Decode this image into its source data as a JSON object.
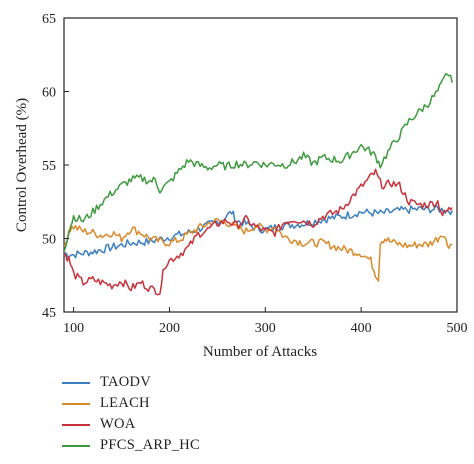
{
  "chart_data": {
    "type": "line",
    "xlabel": "Number of Attacks",
    "ylabel": "Control Overhead (%)",
    "xlim": [
      90,
      500
    ],
    "ylim": [
      45,
      65
    ],
    "xticks": [
      100,
      200,
      300,
      400,
      500
    ],
    "yticks": [
      45,
      50,
      55,
      60,
      65
    ],
    "grid": false,
    "legend_position": "bottom-left",
    "series": [
      {
        "name": "TAODV",
        "color": "#3b7fbf",
        "x": [
          90,
          100,
          120,
          140,
          160,
          180,
          200,
          220,
          240,
          255,
          265,
          270,
          280,
          290,
          300,
          320,
          340,
          360,
          380,
          400,
          420,
          440,
          460,
          480,
          490,
          495
        ],
        "y": [
          49,
          48.9,
          49.1,
          49.4,
          49.7,
          49.8,
          50.1,
          50.4,
          50.9,
          51.3,
          51.8,
          51.2,
          51.0,
          50.7,
          50.6,
          50.9,
          51.0,
          51.3,
          51.5,
          51.8,
          51.7,
          51.9,
          52.0,
          52.0,
          51.9,
          51.9
        ]
      },
      {
        "name": "LEACH",
        "color": "#d9892a",
        "x": [
          90,
          95,
          100,
          110,
          120,
          130,
          140,
          150,
          160,
          170,
          180,
          190,
          200,
          210,
          220,
          230,
          240,
          250,
          260,
          270,
          280,
          290,
          300,
          310,
          320,
          340,
          360,
          380,
          400,
          410,
          415,
          418,
          420,
          425,
          430,
          440,
          450,
          460,
          470,
          480,
          485,
          490,
          495
        ],
        "y": [
          49.2,
          50.6,
          50.8,
          50.5,
          50.4,
          50.2,
          50.4,
          50.0,
          50.7,
          50.4,
          50.0,
          49.8,
          49.7,
          49.9,
          50.3,
          50.7,
          51.0,
          51.2,
          51.1,
          50.7,
          50.5,
          50.9,
          50.6,
          50.8,
          50.1,
          49.7,
          49.7,
          49.3,
          49.0,
          48.5,
          47.6,
          47.3,
          49.8,
          50.0,
          49.8,
          49.6,
          49.5,
          49.6,
          49.6,
          50.0,
          50.4,
          49.6,
          49.6
        ]
      },
      {
        "name": "WOA",
        "color": "#c7313a",
        "x": [
          90,
          95,
          100,
          110,
          120,
          130,
          140,
          150,
          160,
          170,
          180,
          190,
          195,
          200,
          210,
          220,
          230,
          240,
          250,
          260,
          270,
          280,
          290,
          300,
          310,
          320,
          330,
          340,
          350,
          360,
          370,
          380,
          390,
          400,
          410,
          415,
          420,
          425,
          430,
          440,
          450,
          460,
          470,
          480,
          485,
          490,
          495
        ],
        "y": [
          49.0,
          48.6,
          47.6,
          47.0,
          47.2,
          47.0,
          46.8,
          47.1,
          46.6,
          47.0,
          46.6,
          46.4,
          48.2,
          48.5,
          48.9,
          49.4,
          50.3,
          50.6,
          51.0,
          51.2,
          50.9,
          51.3,
          50.8,
          50.5,
          50.4,
          51.1,
          51.3,
          51.2,
          51.0,
          51.5,
          51.7,
          52.0,
          52.8,
          53.5,
          54.2,
          54.5,
          53.8,
          53.5,
          53.8,
          53.6,
          52.5,
          52.3,
          52.3,
          52.5,
          51.6,
          51.9,
          52.1
        ]
      },
      {
        "name": "PFCS_ARP_HC",
        "color": "#3f9a3f",
        "x": [
          90,
          95,
          100,
          110,
          120,
          130,
          140,
          150,
          160,
          170,
          180,
          185,
          190,
          200,
          210,
          220,
          230,
          240,
          250,
          260,
          270,
          280,
          290,
          300,
          310,
          320,
          330,
          340,
          350,
          360,
          370,
          380,
          390,
          400,
          410,
          415,
          420,
          430,
          440,
          450,
          460,
          470,
          480,
          485,
          490,
          495
        ],
        "y": [
          49.2,
          50.5,
          51.5,
          51.2,
          51.8,
          52.5,
          53.1,
          53.6,
          54.0,
          54.1,
          53.9,
          54.0,
          53.3,
          53.8,
          54.6,
          55.3,
          55.0,
          54.8,
          55.0,
          54.9,
          55.1,
          55.0,
          55.2,
          55.0,
          55.1,
          55.0,
          55.2,
          55.6,
          55.1,
          55.5,
          55.4,
          55.3,
          55.8,
          56.3,
          55.9,
          55.6,
          55.0,
          56.1,
          57.0,
          58.0,
          58.6,
          59.2,
          60.0,
          60.6,
          61.3,
          60.6
        ]
      }
    ]
  }
}
